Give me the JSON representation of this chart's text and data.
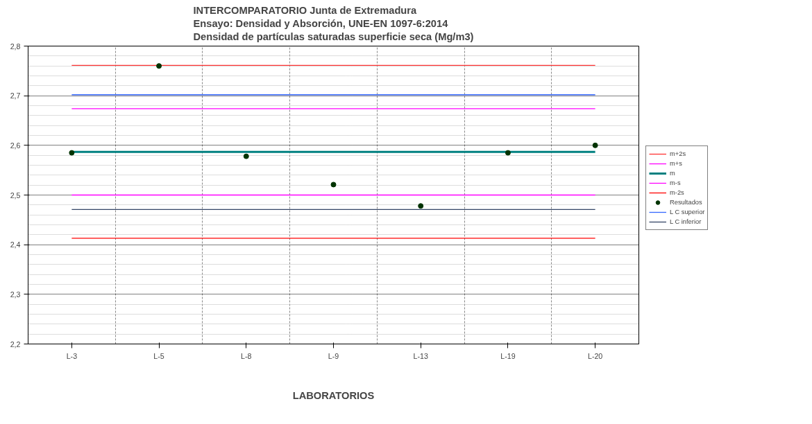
{
  "chart_data": {
    "type": "line",
    "title": "INTERCOMPARATORIO Junta de Extremadura\nEnsayo:  Densidad y Absorción, UNE-EN 1097-6:2014\nDensidad de partículas saturadas superficie seca (Mg/m3)",
    "xlabel": "LABORATORIOS",
    "categories": [
      "L-3",
      "L-5",
      "L-8",
      "L-9",
      "L-13",
      "L-19",
      "L-20"
    ],
    "series": [
      {
        "name": "m+2s",
        "color": "#ff3333",
        "values": [
          2.761,
          2.761,
          2.761,
          2.761,
          2.761,
          2.761,
          2.761
        ]
      },
      {
        "name": "m+s",
        "color": "#ff00ff",
        "values": [
          2.674,
          2.674,
          2.674,
          2.674,
          2.674,
          2.674,
          2.674
        ]
      },
      {
        "name": "m",
        "color": "#008080",
        "values": [
          2.587,
          2.587,
          2.587,
          2.587,
          2.587,
          2.587,
          2.587
        ]
      },
      {
        "name": "m-s",
        "color": "#ff00ff",
        "values": [
          2.5,
          2.5,
          2.5,
          2.5,
          2.5,
          2.5,
          2.5
        ]
      },
      {
        "name": "m-2s",
        "color": "#ff0000",
        "values": [
          2.413,
          2.413,
          2.413,
          2.413,
          2.413,
          2.413,
          2.413
        ]
      },
      {
        "name": "Resultados",
        "color": "#003300",
        "type": "scatter",
        "marker": "circle",
        "values": [
          2.585,
          2.76,
          2.578,
          2.521,
          2.478,
          2.585,
          2.6
        ]
      },
      {
        "name": "L C superior",
        "color": "#3366ff",
        "values": [
          2.702,
          2.702,
          2.702,
          2.702,
          2.702,
          2.702,
          2.702
        ]
      },
      {
        "name": "L C inferior",
        "color": "#334466",
        "values": [
          2.471,
          2.471,
          2.471,
          2.471,
          2.471,
          2.471,
          2.471
        ]
      }
    ],
    "ylim": [
      2.2,
      2.8
    ],
    "yticks": [
      {
        "value": 2.2,
        "label": "2,2"
      },
      {
        "value": 2.3,
        "label": "2,3"
      },
      {
        "value": 2.4,
        "label": "2,4"
      },
      {
        "value": 2.5,
        "label": "2,5"
      },
      {
        "value": 2.6,
        "label": "2,6"
      },
      {
        "value": 2.7,
        "label": "2,7"
      },
      {
        "value": 2.8,
        "label": "2,8"
      }
    ],
    "grid": true,
    "legend": "right"
  }
}
